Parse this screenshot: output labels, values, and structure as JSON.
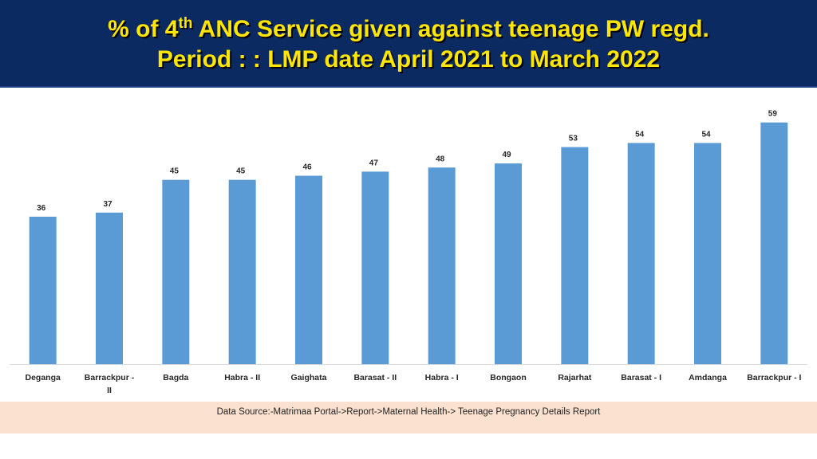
{
  "title": {
    "line1_prefix": "% of 4",
    "line1_sup": "th",
    "line1_suffix": " ANC Service given against teenage PW regd.",
    "line2": "Period : : LMP date April 2021 to March 2022"
  },
  "colors": {
    "banner": "#0b2a62",
    "title_text": "#ffe600",
    "bar": "#5b9bd5",
    "source_band": "#fbe1d0"
  },
  "chart_data": {
    "type": "bar",
    "categories": [
      "Deganga",
      "Barrackpur - II",
      "Bagda",
      "Habra - II",
      "Gaighata",
      "Barasat - II",
      "Habra - I",
      "Bongaon",
      "Rajarhat",
      "Barasat - I",
      "Amdanga",
      "Barrackpur - I"
    ],
    "series": [
      {
        "values": [
          36,
          37,
          45,
          45,
          46,
          47,
          48,
          49,
          53,
          54,
          54,
          59
        ]
      }
    ],
    "data_labels": [
      "36",
      "37",
      "45",
      "45",
      "46",
      "47",
      "48",
      "49",
      "53",
      "54",
      "54",
      "59"
    ],
    "ylim": [
      0,
      64
    ],
    "grid": false,
    "legend": "none"
  },
  "source": "Data Source:-Matrimaa Portal->Report->Maternal Health-> Teenage Pregnancy Details Report"
}
